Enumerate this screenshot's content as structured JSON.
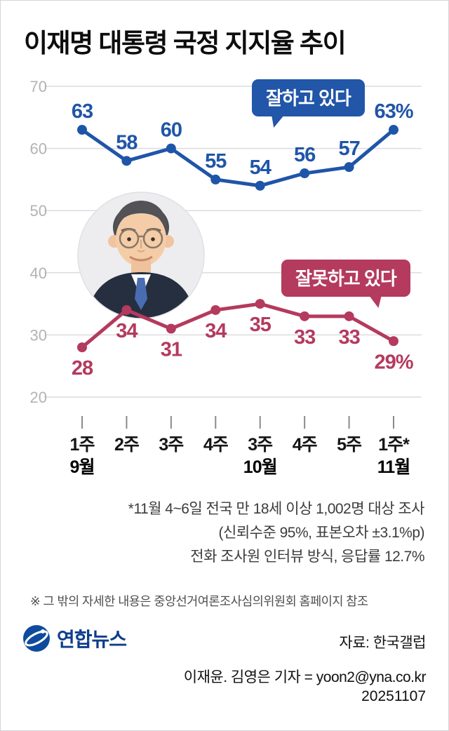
{
  "title": "이재명 대통령 국정 지지율 추이",
  "chart_data": {
    "type": "line",
    "categories": [
      "1주",
      "2주",
      "3주",
      "4주",
      "3주",
      "4주",
      "5주",
      "1주*"
    ],
    "month_labels": [
      {
        "index": 0,
        "label": "9월"
      },
      {
        "index": 4,
        "label": "10월"
      },
      {
        "index": 7,
        "label": "11월"
      }
    ],
    "ylim": [
      20,
      70
    ],
    "yticks": [
      70,
      60,
      50,
      40,
      30,
      20
    ],
    "grid": true,
    "legend_position": "annotation-bubbles",
    "series": [
      {
        "name": "잘하고 있다",
        "color": "#1f55a8",
        "values": [
          63,
          58,
          60,
          55,
          54,
          56,
          57,
          63
        ],
        "point_labels": [
          "63",
          "58",
          "60",
          "55",
          "54",
          "56",
          "57",
          "63%"
        ],
        "label_position": "above"
      },
      {
        "name": "잘못하고 있다",
        "color": "#b43a5e",
        "values": [
          28,
          34,
          31,
          34,
          35,
          33,
          33,
          29
        ],
        "point_labels": [
          "28",
          "34",
          "31",
          "34",
          "35",
          "33",
          "33",
          "29%"
        ],
        "label_position": "below"
      }
    ]
  },
  "annotations": {
    "positive_bubble": "잘하고 있다",
    "negative_bubble": "잘못하고 있다"
  },
  "footnotes": {
    "line1": "*11월 4~6일 전국 만 18세 이상 1,002명 대상 조사",
    "line2": "(신뢰수준 95%, 표본오차 ±3.1%p)",
    "line3": "전화 조사원 인터뷰 방식, 응답률 12.7%",
    "note": "※ 그 밖의 자세한 내용은 중앙선거여론조사심의위원회 홈페이지 참조"
  },
  "footer": {
    "logo_text": "연합뉴스",
    "source": "자료: 한국갤럽",
    "byline": "이재윤. 김영은 기자 = yoon2@yna.co.kr",
    "date": "20251107"
  },
  "colors": {
    "positive": "#1f55a8",
    "negative": "#b43a5e",
    "logo_blue": "#0e3d8c"
  }
}
